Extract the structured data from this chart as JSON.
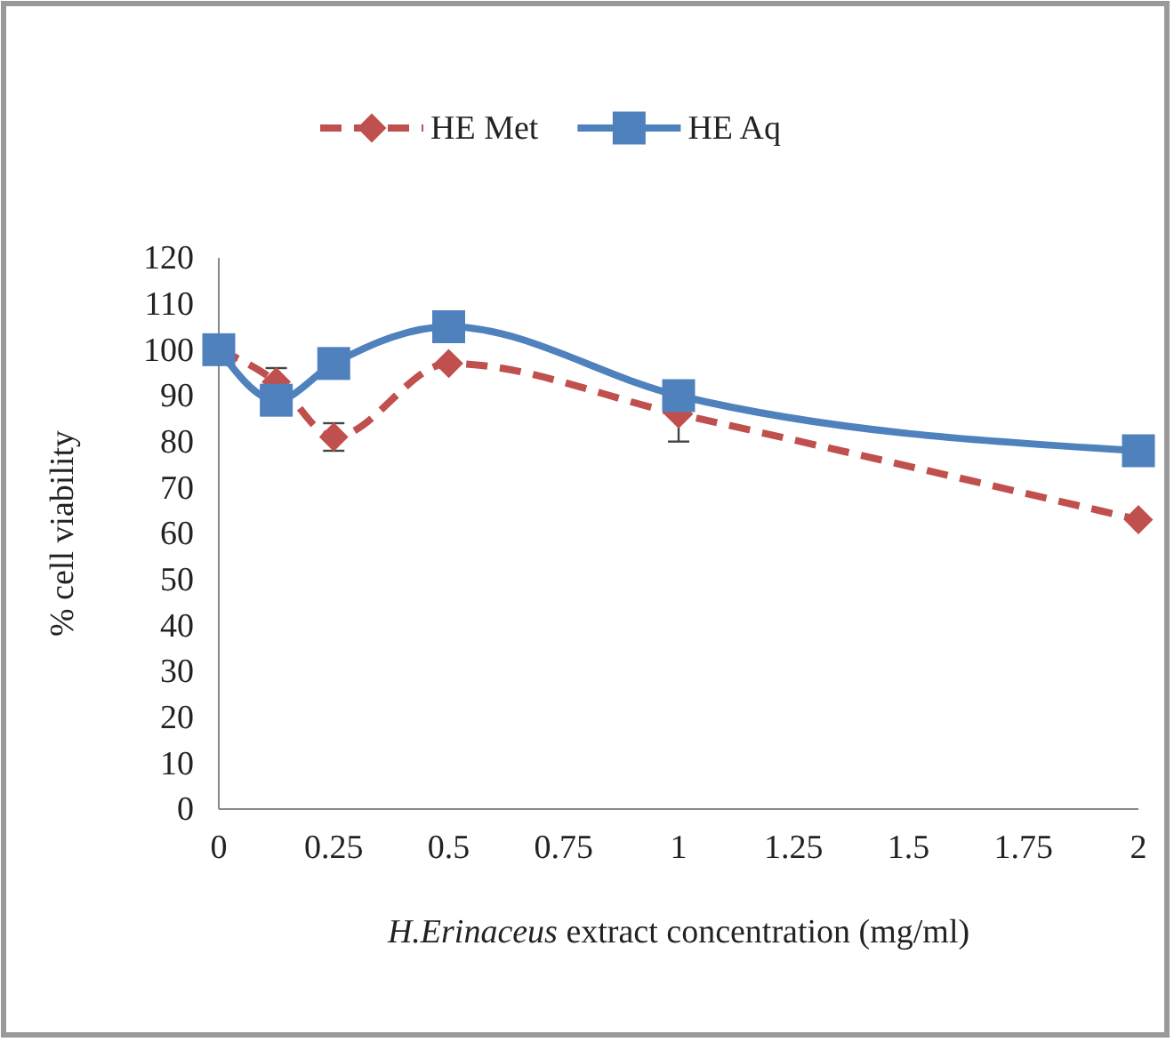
{
  "chart_data": {
    "type": "line",
    "xlabel": "H.Erinaceus extract concentration (mg/ml)",
    "ylabel": "% cell viability",
    "x": [
      0,
      0.125,
      0.25,
      0.5,
      1,
      2
    ],
    "xlim": [
      0,
      2
    ],
    "xticks": [
      0,
      0.25,
      0.5,
      0.75,
      1,
      1.25,
      1.5,
      1.75,
      2
    ],
    "ylim": [
      0,
      120
    ],
    "yticks": [
      0,
      10,
      20,
      30,
      40,
      50,
      60,
      70,
      80,
      90,
      100,
      110,
      120
    ],
    "grid": false,
    "legend": "top",
    "series": [
      {
        "name": "HE Met",
        "color": "#c0504d",
        "marker": "diamond",
        "line_style": "dashed",
        "values": [
          100,
          93,
          81,
          97,
          86,
          63
        ],
        "errors": [
          null,
          3,
          3,
          null,
          6,
          null
        ]
      },
      {
        "name": "HE Aq",
        "color": "#4f81bd",
        "marker": "square",
        "line_style": "solid",
        "values": [
          100,
          89,
          97,
          105,
          90,
          78
        ]
      }
    ]
  }
}
